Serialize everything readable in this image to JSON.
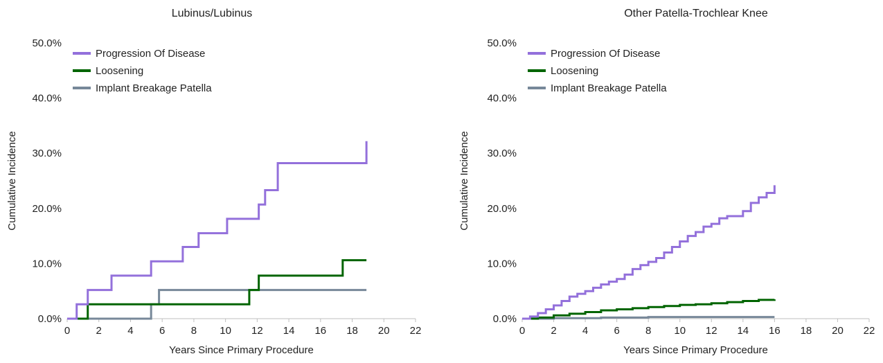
{
  "colors": {
    "progression": "#9370db",
    "loosening": "#006400",
    "implant": "#778899",
    "axis": "#bfbfbf"
  },
  "chart_data": [
    {
      "type": "line",
      "step": true,
      "title": "Lubinus/Lubinus",
      "xlabel": "Years Since Primary Procedure",
      "ylabel": "Cumulative Incidence",
      "xlim": [
        0,
        22
      ],
      "ylim": [
        0,
        0.5
      ],
      "xticks": [
        "0",
        "2",
        "4",
        "6",
        "8",
        "10",
        "12",
        "14",
        "16",
        "18",
        "20",
        "22"
      ],
      "yticks": [
        "0.0%",
        "10.0%",
        "20.0%",
        "30.0%",
        "40.0%",
        "50.0%"
      ],
      "legend_position": "top-left",
      "series": [
        {
          "name": "Progression Of Disease",
          "color_key": "progression",
          "x": [
            0,
            0.6,
            1.3,
            2.8,
            5.3,
            7.3,
            8.3,
            10.1,
            12.1,
            12.5,
            13.3,
            18.9,
            18.9
          ],
          "y": [
            0,
            0.026,
            0.052,
            0.078,
            0.104,
            0.13,
            0.155,
            0.181,
            0.207,
            0.233,
            0.282,
            0.282,
            0.322
          ]
        },
        {
          "name": "Loosening",
          "color_key": "loosening",
          "x": [
            0,
            1.3,
            11.5,
            12.1,
            17.4,
            18.9
          ],
          "y": [
            0,
            0.026,
            0.052,
            0.078,
            0.106,
            0.106
          ]
        },
        {
          "name": "Implant Breakage Patella",
          "color_key": "implant",
          "x": [
            0,
            5.3,
            5.8,
            18.9
          ],
          "y": [
            0,
            0.026,
            0.052,
            0.052
          ]
        }
      ]
    },
    {
      "type": "line",
      "step": true,
      "title": "Other Patella-Trochlear Knee",
      "xlabel": "Years Since Primary Procedure",
      "ylabel": "Cumulative Incidence",
      "xlim": [
        0,
        22
      ],
      "ylim": [
        0,
        0.5
      ],
      "xticks": [
        "0",
        "2",
        "4",
        "6",
        "8",
        "10",
        "12",
        "14",
        "16",
        "18",
        "20",
        "22"
      ],
      "yticks": [
        "0.0%",
        "10.0%",
        "20.0%",
        "30.0%",
        "40.0%",
        "50.0%"
      ],
      "legend_position": "top-left",
      "series": [
        {
          "name": "Progression Of Disease",
          "color_key": "progression",
          "x": [
            0,
            0.5,
            1,
            1.5,
            2,
            2.5,
            3,
            3.5,
            4,
            4.5,
            5,
            5.5,
            6,
            6.5,
            7,
            7.5,
            8,
            8.5,
            9,
            9.5,
            10,
            10.5,
            11,
            11.5,
            12,
            12.5,
            13,
            13.5,
            14,
            14.5,
            15,
            15.5,
            16,
            16
          ],
          "y": [
            0,
            0.004,
            0.01,
            0.017,
            0.024,
            0.032,
            0.04,
            0.045,
            0.05,
            0.056,
            0.062,
            0.067,
            0.072,
            0.08,
            0.09,
            0.097,
            0.103,
            0.11,
            0.12,
            0.13,
            0.14,
            0.15,
            0.157,
            0.167,
            0.172,
            0.182,
            0.186,
            0.186,
            0.195,
            0.21,
            0.22,
            0.228,
            0.228,
            0.242
          ]
        },
        {
          "name": "Loosening",
          "color_key": "loosening",
          "x": [
            0,
            1,
            2,
            3,
            4,
            5,
            6,
            7,
            8,
            9,
            10,
            11,
            12,
            13,
            14,
            15,
            16
          ],
          "y": [
            0,
            0.002,
            0.006,
            0.009,
            0.012,
            0.015,
            0.017,
            0.019,
            0.021,
            0.023,
            0.025,
            0.026,
            0.028,
            0.03,
            0.032,
            0.034,
            0.035
          ]
        },
        {
          "name": "Implant Breakage Patella",
          "color_key": "implant",
          "x": [
            0,
            2,
            5,
            8,
            12,
            16
          ],
          "y": [
            0,
            0.001,
            0.002,
            0.003,
            0.003,
            0.003
          ]
        }
      ]
    }
  ]
}
